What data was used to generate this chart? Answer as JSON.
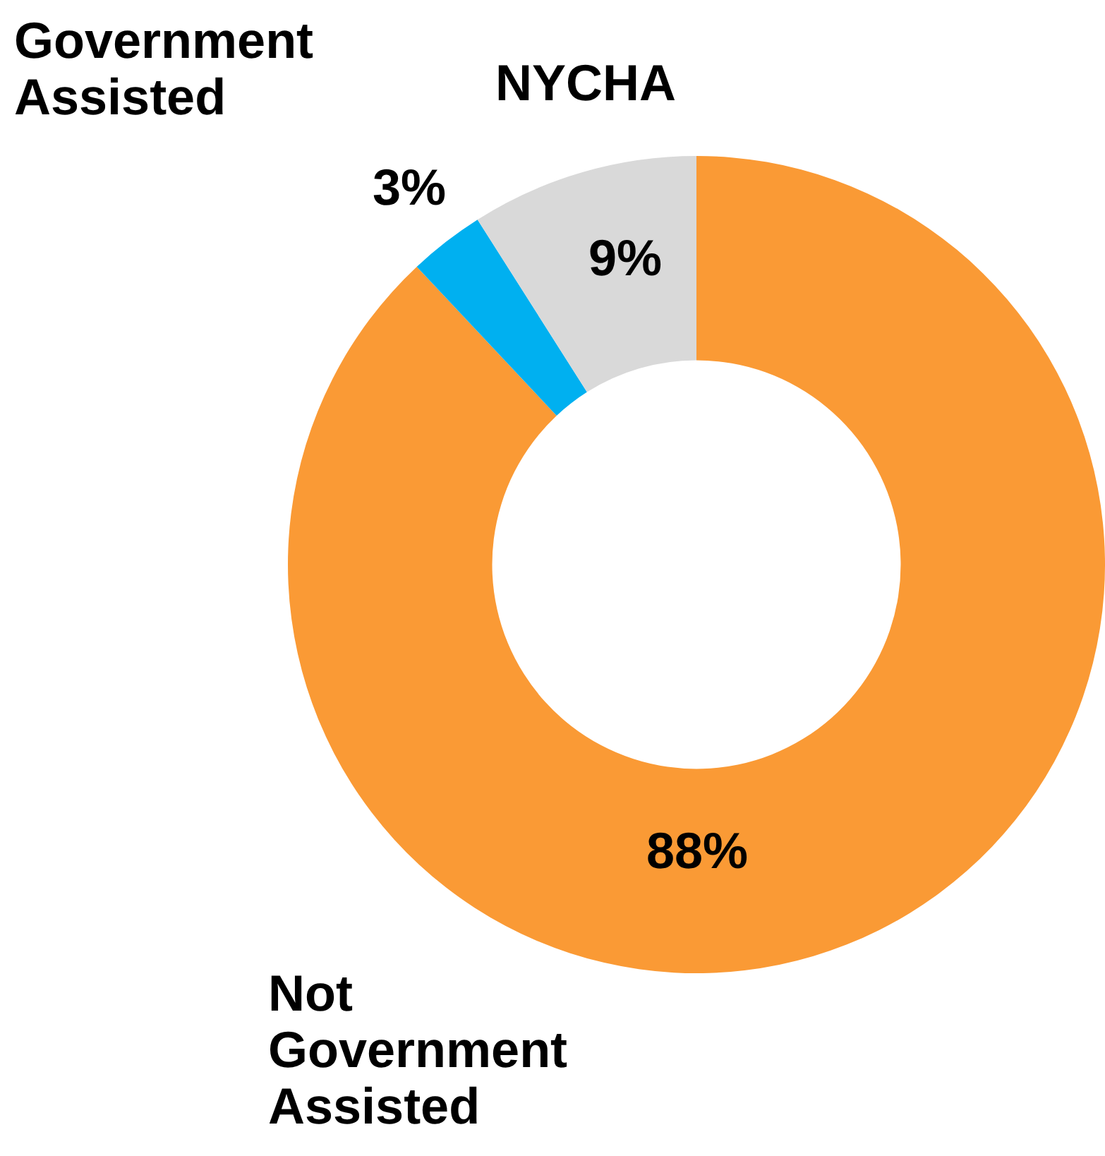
{
  "chart_data": {
    "type": "donut",
    "categories": [
      "Not Government Assisted",
      "Government Assisted",
      "NYCHA"
    ],
    "values": [
      88,
      3,
      9
    ],
    "colors": [
      "#fa9a35",
      "#00b0f0",
      "#d9d9d9"
    ],
    "value_labels": [
      "88%",
      "3%",
      "9%"
    ],
    "legend": false
  }
}
